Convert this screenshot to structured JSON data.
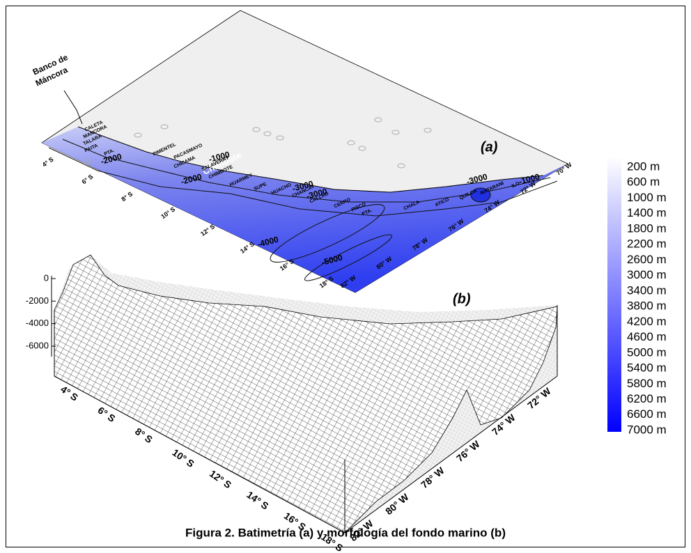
{
  "caption": "Figura 2. Batimetría (a) y morfología del fondo marino (b)",
  "annotation": [
    "Banco de",
    "Máncora"
  ],
  "panel_a": {
    "label": "(a)",
    "lat_labels": [
      "4° S",
      "6° S",
      "8° S",
      "10° S",
      "12° S",
      "14° S",
      "16° S",
      "18° S"
    ],
    "lon_labels": [
      "82° W",
      "80° W",
      "78° W",
      "76° W",
      "74° W",
      "72° W",
      "70° W"
    ],
    "contour_labels": [
      "-1000",
      "-2000",
      "-2000",
      "-3000",
      "-3000",
      "-4000",
      "-5000",
      "-3000",
      "-1000"
    ],
    "highlight": "Chimbote",
    "places": [
      "CALETA",
      "MANCORA",
      "TALARA",
      "PAITA",
      "PTA.",
      "PIMENTEL",
      "PACASMAYO",
      "CHICAMA",
      "SALAVERRY",
      "CHIMBOTE",
      "HUARMEY",
      "SUPE",
      "HUACHO",
      "CHANCAY",
      "CALLAO",
      "CERRO",
      "PISCO",
      "PTA.",
      "CHALA",
      "ATICO",
      "QUILCA",
      "MATARANI",
      "ILO"
    ]
  },
  "panel_b": {
    "label": "(b)",
    "z_labels": [
      "0",
      "-2000",
      "-4000",
      "-6000"
    ],
    "lat_labels": [
      "4° S",
      "6° S",
      "8° S",
      "10° S",
      "12° S",
      "14° S",
      "16° S",
      "18° S"
    ],
    "lon_labels": [
      "82° W",
      "80° W",
      "78° W",
      "76° W",
      "74° W",
      "72° W"
    ]
  },
  "colorbar": {
    "labels": [
      "200 m",
      "600 m",
      "1000 m",
      "1400 m",
      "1800 m",
      "2200 m",
      "2600 m",
      "3000 m",
      "3400 m",
      "3800 m",
      "4200 m",
      "4600 m",
      "5000 m",
      "5400 m",
      "5800 m",
      "6200 m",
      "6600 m",
      "7000 m"
    ]
  }
}
